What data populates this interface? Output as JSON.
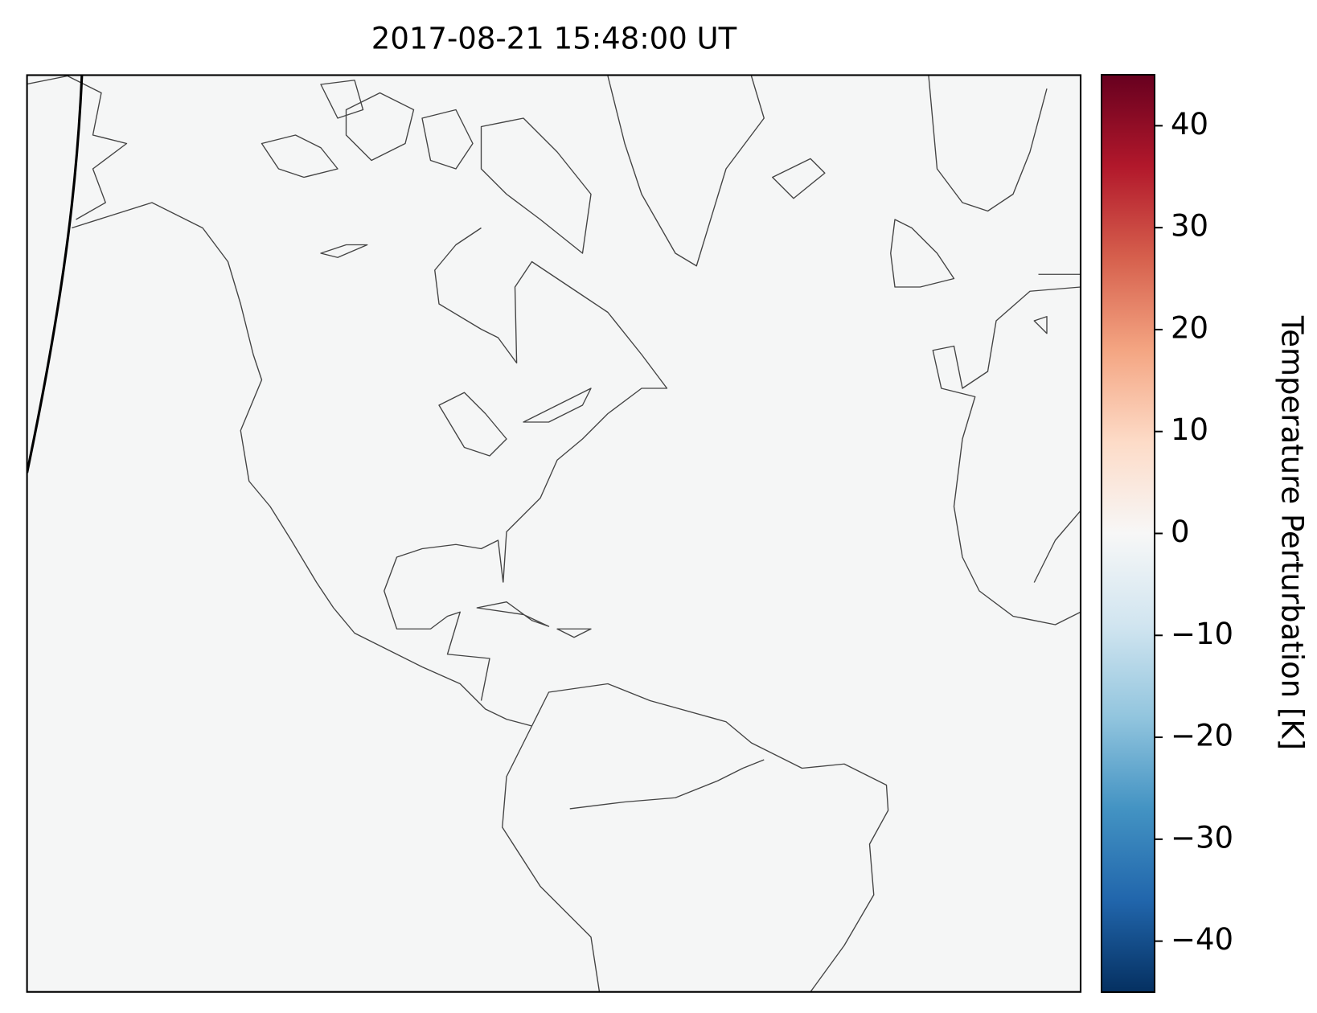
{
  "map": {
    "title": "2017-08-21 15:48:00 UT",
    "colorbar": {
      "label": "Temperature Perturbation [K]",
      "lim": [
        -45,
        45
      ],
      "ticks": [
        {
          "value": -40,
          "label": "−40"
        },
        {
          "value": -30,
          "label": "−30"
        },
        {
          "value": -20,
          "label": "−20"
        },
        {
          "value": -10,
          "label": "−10"
        },
        0,
        10,
        20,
        30,
        40
      ]
    }
  }
}
